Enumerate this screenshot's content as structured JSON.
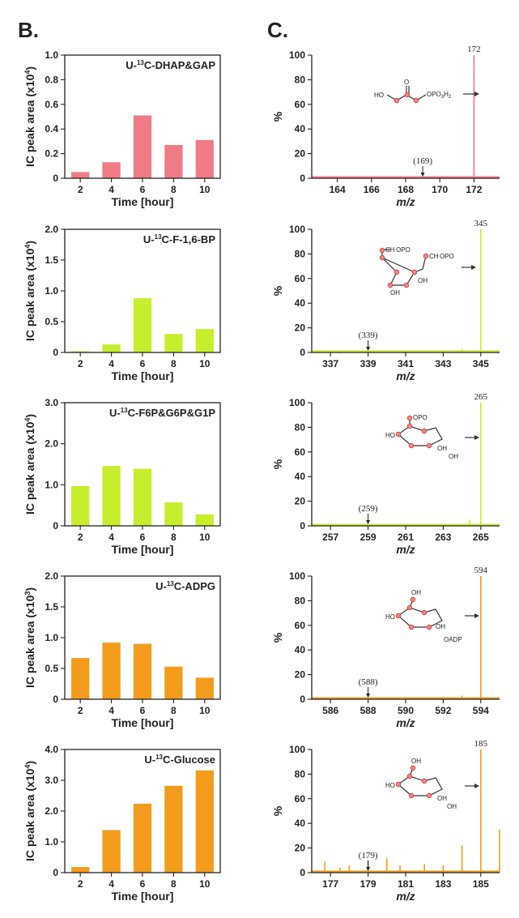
{
  "panels": {
    "left_letter": "B.",
    "right_letter": "C."
  },
  "chart_data": [
    {
      "type": "bar",
      "panel": "B",
      "row": 0,
      "title": "U-13C-DHAP&GAP",
      "title_parts": [
        "U-",
        "13",
        "C-DHAP&GAP"
      ],
      "xlabel": "Time [hour]",
      "ylabel": "IC peak area (x10",
      "ylabel_sup": "4",
      "ylabel_end": ")",
      "categories": [
        "2",
        "4",
        "6",
        "8",
        "10"
      ],
      "values": [
        0.05,
        0.13,
        0.51,
        0.27,
        0.31
      ],
      "ylim": [
        0,
        1.0
      ],
      "yticks": [
        0,
        0.2,
        0.4,
        0.6,
        0.8,
        1.0
      ],
      "ytick_labels": [
        "0",
        "0.2",
        "0.4",
        "0.6",
        "0.8",
        "1.0"
      ],
      "color": "#f07a86"
    },
    {
      "type": "bar",
      "panel": "B",
      "row": 1,
      "title": "U-13C-F-1,6-BP",
      "title_parts": [
        "U-",
        "13",
        "C-F-1,6-BP"
      ],
      "xlabel": "Time [hour]",
      "ylabel": "IC peak area (x10",
      "ylabel_sup": "4",
      "ylabel_end": ")",
      "categories": [
        "2",
        "4",
        "6",
        "8",
        "10"
      ],
      "values": [
        0.02,
        0.13,
        0.88,
        0.3,
        0.38
      ],
      "ylim": [
        0,
        2.0
      ],
      "yticks": [
        0,
        0.5,
        1.0,
        1.5,
        2.0
      ],
      "ytick_labels": [
        "0",
        "0.5",
        "1.0",
        "1.5",
        "2.0"
      ],
      "color": "#c6ee2c"
    },
    {
      "type": "bar",
      "panel": "B",
      "row": 2,
      "title": "U-13C-F6P&G6P&G1P",
      "title_parts": [
        "U-",
        "13",
        "C-F6P&G6P&G1P"
      ],
      "xlabel": "Time [hour]",
      "ylabel": "IC peak area (x10",
      "ylabel_sup": "4",
      "ylabel_end": ")",
      "categories": [
        "2",
        "4",
        "6",
        "8",
        "10"
      ],
      "values": [
        0.97,
        1.46,
        1.39,
        0.57,
        0.28
      ],
      "ylim": [
        0,
        3.0
      ],
      "yticks": [
        0,
        1.0,
        2.0,
        3.0
      ],
      "ytick_labels": [
        "0",
        "1.0",
        "2.0",
        "3.0"
      ],
      "color": "#c6ee2c"
    },
    {
      "type": "bar",
      "panel": "B",
      "row": 3,
      "title": "U-13C-ADPG",
      "title_parts": [
        "U-",
        "13",
        "C-ADPG"
      ],
      "xlabel": "Time [hour]",
      "ylabel": "IC peak area (x10",
      "ylabel_sup": "3",
      "ylabel_end": ")",
      "categories": [
        "2",
        "4",
        "6",
        "8",
        "10"
      ],
      "values": [
        0.67,
        0.92,
        0.9,
        0.53,
        0.35
      ],
      "ylim": [
        0,
        2.0
      ],
      "yticks": [
        0,
        0.5,
        1.0,
        1.5,
        2.0
      ],
      "ytick_labels": [
        "0",
        "0.5",
        "1.0",
        "1.5",
        "2.0"
      ],
      "color": "#f39c1c"
    },
    {
      "type": "bar",
      "panel": "B",
      "row": 4,
      "title": "U-13C-Glucose",
      "title_parts": [
        "U-",
        "13",
        "C-Glucose"
      ],
      "xlabel": "Time [hour]",
      "ylabel": "IC peak area (x10",
      "ylabel_sup": "4",
      "ylabel_end": ")",
      "categories": [
        "2",
        "4",
        "6",
        "8",
        "10"
      ],
      "values": [
        0.18,
        1.38,
        2.24,
        2.82,
        3.32
      ],
      "ylim": [
        0,
        4.0
      ],
      "yticks": [
        0,
        1.0,
        2.0,
        3.0,
        4.0
      ],
      "ytick_labels": [
        "0",
        "1.0",
        "2.0",
        "3.0",
        "4.0"
      ],
      "color": "#f39c1c"
    },
    {
      "type": "line",
      "panel": "C",
      "row": 0,
      "xlabel": "m/z",
      "ylabel": "%",
      "xlim": [
        162.5,
        173.5
      ],
      "ylim": [
        0,
        100
      ],
      "xticks": [
        164,
        166,
        168,
        170,
        172
      ],
      "yticks": [
        0,
        20,
        40,
        60,
        80,
        100
      ],
      "peaks": [
        {
          "x": 172,
          "y": 100
        },
        {
          "x": 169,
          "y": 1
        }
      ],
      "noise": [
        1,
        1,
        1,
        1
      ],
      "peak_label": "172",
      "marker_x": 169,
      "marker_label": "(169)",
      "color": "#f07a86"
    },
    {
      "type": "line",
      "panel": "C",
      "row": 1,
      "xlabel": "m/z",
      "ylabel": "%",
      "xlim": [
        336,
        346
      ],
      "ylim": [
        0,
        100
      ],
      "xticks": [
        337,
        339,
        341,
        343,
        345
      ],
      "yticks": [
        0,
        20,
        40,
        60,
        80,
        100
      ],
      "peaks": [
        {
          "x": 345,
          "y": 100
        },
        {
          "x": 344,
          "y": 3
        },
        {
          "x": 339,
          "y": 1
        }
      ],
      "noise": [
        1,
        1,
        1,
        1
      ],
      "peak_label": "345",
      "marker_x": 339,
      "marker_label": "(339)",
      "color": "#c6ee2c"
    },
    {
      "type": "line",
      "panel": "C",
      "row": 2,
      "xlabel": "m/z",
      "ylabel": "%",
      "xlim": [
        256,
        266
      ],
      "ylim": [
        0,
        100
      ],
      "xticks": [
        257,
        259,
        261,
        263,
        265
      ],
      "yticks": [
        0,
        20,
        40,
        60,
        80,
        100
      ],
      "peaks": [
        {
          "x": 265,
          "y": 100
        },
        {
          "x": 264.4,
          "y": 5
        },
        {
          "x": 259,
          "y": 1
        }
      ],
      "noise": [
        1,
        1,
        1,
        1
      ],
      "peak_label": "265",
      "marker_x": 259,
      "marker_label": "(259)",
      "color": "#c6ee2c"
    },
    {
      "type": "line",
      "panel": "C",
      "row": 3,
      "xlabel": "m/z",
      "ylabel": "%",
      "xlim": [
        585,
        595
      ],
      "ylim": [
        0,
        100
      ],
      "xticks": [
        586,
        588,
        590,
        592,
        594
      ],
      "yticks": [
        0,
        20,
        40,
        60,
        80,
        100
      ],
      "peaks": [
        {
          "x": 594,
          "y": 100
        },
        {
          "x": 593,
          "y": 3
        },
        {
          "x": 588,
          "y": 1
        }
      ],
      "noise": [
        1,
        1,
        1,
        1
      ],
      "peak_label": "594",
      "marker_x": 588,
      "marker_label": "(588)",
      "color": "#f39c1c"
    },
    {
      "type": "line",
      "panel": "C",
      "row": 4,
      "xlabel": "m/z",
      "ylabel": "%",
      "xlim": [
        176,
        186
      ],
      "ylim": [
        0,
        100
      ],
      "xticks": [
        177,
        179,
        181,
        183,
        185
      ],
      "yticks": [
        0,
        20,
        40,
        60,
        80,
        100
      ],
      "peaks": [
        {
          "x": 185,
          "y": 100
        },
        {
          "x": 186,
          "y": 35
        },
        {
          "x": 184,
          "y": 22
        },
        {
          "x": 176.7,
          "y": 9
        },
        {
          "x": 178,
          "y": 6
        },
        {
          "x": 179,
          "y": 10
        },
        {
          "x": 180,
          "y": 12
        },
        {
          "x": 180.7,
          "y": 6
        },
        {
          "x": 182,
          "y": 7
        },
        {
          "x": 183,
          "y": 6
        },
        {
          "x": 177.5,
          "y": 4
        }
      ],
      "noise": [
        3,
        5,
        4,
        6
      ],
      "peak_label": "185",
      "marker_x": 179,
      "marker_label": "(179)",
      "color": "#f39c1c"
    }
  ],
  "structures": {
    "dhap": {
      "ho": "HO",
      "o": "O",
      "po": "OPO",
      "sub3": "3",
      "h2": "H",
      "sub2": "2"
    },
    "fbp": {
      "l1": "CH",
      "l1b": "OPO",
      "l1c": "H",
      "r1": "CH",
      "r1b": "OPO",
      "r1c": "H",
      "oh1": "OH",
      "oh2": "OH"
    },
    "f6p": {
      "top": "OPO",
      "topc": "H",
      "ho": "HO",
      "oh1": "OH",
      "oh2": "OH",
      "oh3": "OH"
    },
    "adpg": {
      "top": "OH",
      "ho": "HO",
      "oh": "OH",
      "oadp": "OADP",
      "o": "O"
    },
    "glc": {
      "top": "OH",
      "ho": "HO",
      "oh1": "OH",
      "oh2": "OH"
    }
  }
}
